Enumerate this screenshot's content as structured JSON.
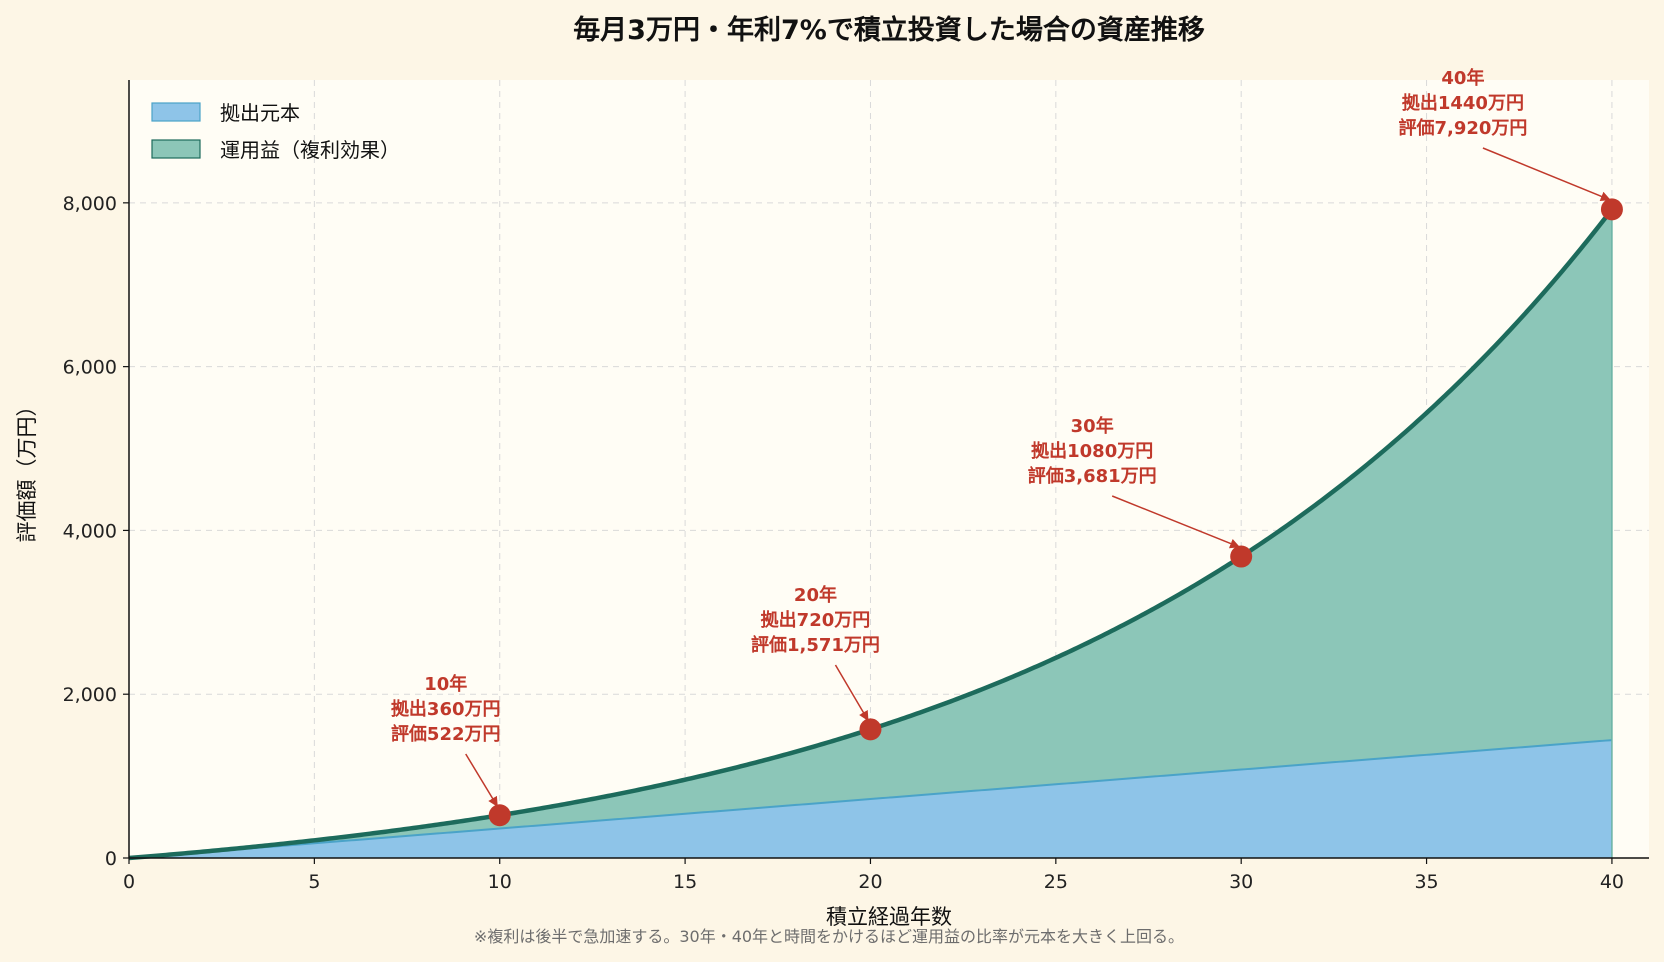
{
  "chart_data": {
    "type": "area",
    "title": "毎月3万円・年利7%で積立投資した場合の資産推移",
    "xlabel": "積立経過年数",
    "ylabel": "評価額（万円）",
    "xlim": [
      0,
      41
    ],
    "ylim": [
      0,
      9500
    ],
    "x_ticks": [
      0,
      5,
      10,
      15,
      20,
      25,
      30,
      35,
      40
    ],
    "y_ticks": [
      0,
      2000,
      4000,
      6000,
      8000
    ],
    "y_tick_labels": [
      "0",
      "2,000",
      "4,000",
      "6,000",
      "8,000"
    ],
    "grid": true,
    "legend_position": "top-left",
    "monthly_contribution": 3,
    "annual_rate": 0.07,
    "series": [
      {
        "name": "拠出元本",
        "color": "#8ec4e8",
        "line_color": "#4aa3c8",
        "x": [
          0,
          5,
          10,
          15,
          20,
          25,
          30,
          35,
          40
        ],
        "values": [
          0,
          180,
          360,
          540,
          720,
          900,
          1080,
          1260,
          1440
        ]
      },
      {
        "name": "運用益（複利効果）",
        "color": "#8cc6b8",
        "line_color": "#1d6b5c",
        "x": [
          0,
          5,
          10,
          15,
          20,
          25,
          30,
          35,
          40
        ],
        "values": [
          0,
          215,
          522,
          957,
          1571,
          2438,
          3681,
          5426,
          7920
        ]
      }
    ],
    "annotations": [
      {
        "x": 10,
        "y": 522,
        "lines": [
          "10年",
          "拠出360万円",
          "評価522万円"
        ]
      },
      {
        "x": 20,
        "y": 1571,
        "lines": [
          "20年",
          "拠出720万円",
          "評価1,571万円"
        ]
      },
      {
        "x": 30,
        "y": 3681,
        "lines": [
          "30年",
          "拠出1080万円",
          "評価3,681万円"
        ]
      },
      {
        "x": 40,
        "y": 7920,
        "lines": [
          "40年",
          "拠出1440万円",
          "評価7,920万円"
        ]
      }
    ],
    "footnote": "※複利は後半で急加速する。30年・40年と時間をかけるほど運用益の比率が元本を大きく上回る。",
    "colors": {
      "principal_fill": "#8ec4e8",
      "gain_fill": "#8cc6b8",
      "total_line": "#1d6b5c",
      "marker": "#c0392b",
      "annotation": "#c0392b"
    }
  }
}
